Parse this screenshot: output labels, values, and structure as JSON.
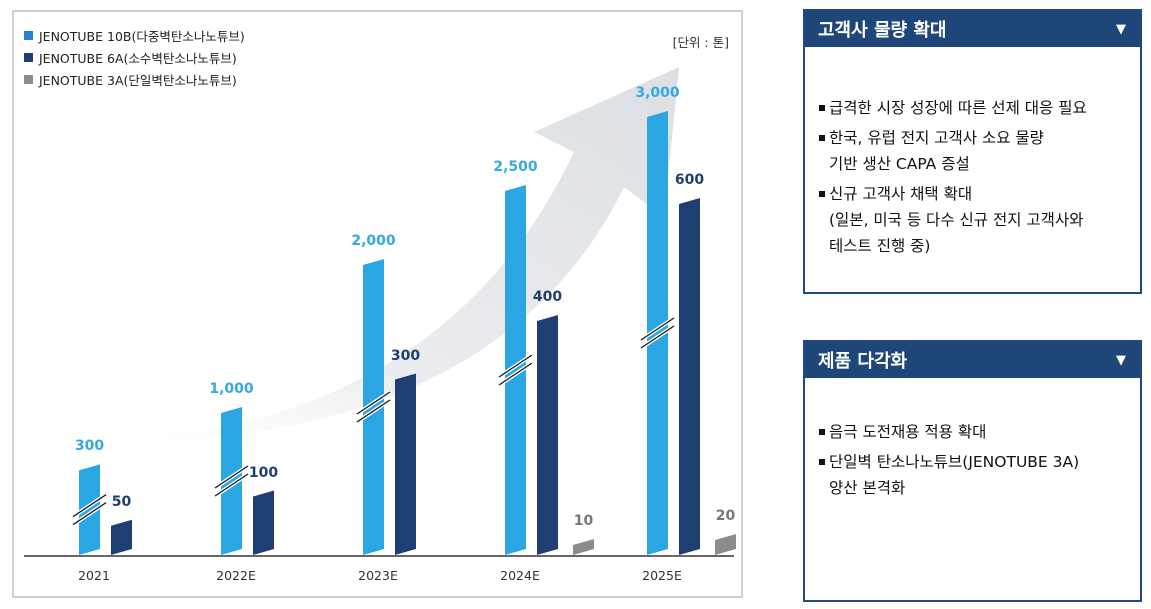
{
  "chart_data": {
    "type": "bar",
    "unit_label": "[단위 : 톤]",
    "categories": [
      "2021",
      "2022E",
      "2023E",
      "2024E",
      "2025E"
    ],
    "series": [
      {
        "name": "JENOTUBE 10B(다중벽탄소나노튜브)",
        "color": "#2aa6e3",
        "label_color": "#35a9e2",
        "values": [
          300,
          1000,
          2000,
          2500,
          3000
        ],
        "labels": [
          "300",
          "1,000",
          "2,000",
          "2,500",
          "3,000"
        ],
        "axis_break": [
          true,
          true,
          true,
          true,
          true
        ]
      },
      {
        "name": "JENOTUBE 6A(소수벽탄소나노튜브)",
        "color": "#1f3f72",
        "label_color": "#1f3f72",
        "values": [
          50,
          100,
          300,
          400,
          600
        ],
        "labels": [
          "50",
          "100",
          "300",
          "400",
          "600"
        ]
      },
      {
        "name": "JENOTUBE 3A(단일벽탄소나노튜브)",
        "color": "#8c8c8c",
        "label_color": "#777777",
        "values": [
          null,
          null,
          null,
          10,
          20
        ],
        "labels": [
          "",
          "",
          "",
          "10",
          "20"
        ]
      }
    ],
    "xlabel": "",
    "ylabel": "",
    "grid": false,
    "legend": "top-left"
  },
  "panels": [
    {
      "title": "고객사 물량 확대",
      "arrow": "▼",
      "bullets": [
        "급격한 시장 성장에 따른 선제 대응 필요",
        "한국, 유럽 전지 고객사 소요 물량\n기반 생산 CAPA 증설",
        "신규 고객사 채택 확대\n(일본, 미국 등 다수 신규 전지 고객사와\n테스트 진행 중)"
      ]
    },
    {
      "title": "제품 다각화",
      "arrow": "▼",
      "bullets": [
        "음극 도전재용 적용 확대",
        "단일벽 탄소나노튜브(JENOTUBE 3A)\n양산 본격화"
      ]
    }
  ]
}
